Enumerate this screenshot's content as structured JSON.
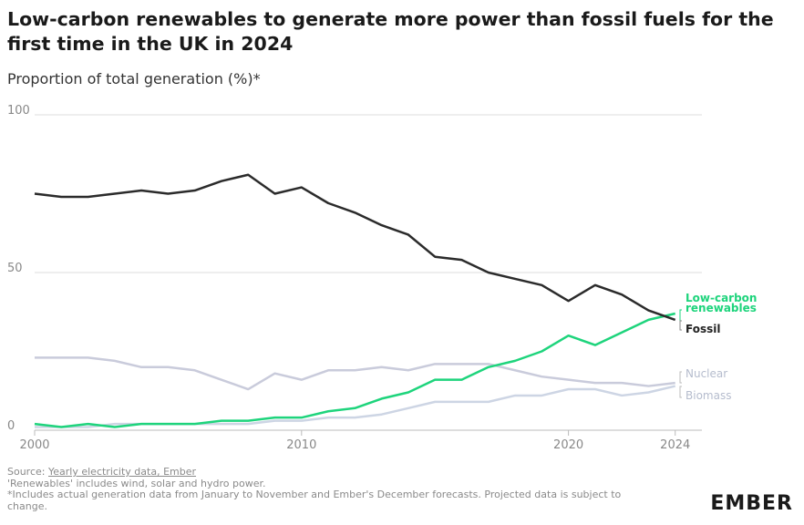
{
  "chart_data": {
    "type": "line",
    "title": "Low-carbon renewables to generate more power than fossil fuels for the first time in the UK in 2024",
    "subtitle": "Proportion of total generation (%)*",
    "x": [
      2000,
      2001,
      2002,
      2003,
      2004,
      2005,
      2006,
      2007,
      2008,
      2009,
      2010,
      2011,
      2012,
      2013,
      2014,
      2015,
      2016,
      2017,
      2018,
      2019,
      2020,
      2021,
      2022,
      2023,
      2024
    ],
    "series": [
      {
        "name": "Fossil",
        "color": "#2b2b2b",
        "values": [
          75,
          74,
          74,
          75,
          76,
          75,
          76,
          79,
          81,
          75,
          77,
          72,
          69,
          65,
          62,
          55,
          54,
          50,
          48,
          46,
          41,
          46,
          43,
          38,
          35
        ]
      },
      {
        "name": "Low-carbon renewables",
        "color": "#1ed47c",
        "values": [
          2,
          1,
          2,
          1,
          2,
          2,
          2,
          3,
          3,
          4,
          4,
          6,
          7,
          10,
          12,
          16,
          16,
          20,
          22,
          25,
          30,
          27,
          31,
          35,
          37
        ]
      },
      {
        "name": "Nuclear",
        "color": "#c9cbdb",
        "values": [
          23,
          23,
          23,
          22,
          20,
          20,
          19,
          16,
          13,
          18,
          16,
          19,
          19,
          20,
          19,
          21,
          21,
          21,
          19,
          17,
          16,
          15,
          15,
          14,
          15
        ]
      },
      {
        "name": "Biomass",
        "color": "#cdd5e4",
        "values": [
          1,
          1,
          1,
          2,
          2,
          2,
          2,
          2,
          2,
          3,
          3,
          4,
          4,
          5,
          7,
          9,
          9,
          9,
          11,
          11,
          13,
          13,
          11,
          12,
          14
        ]
      }
    ],
    "xlim": [
      2000,
      2025
    ],
    "xticks": [
      2000,
      2010,
      2020,
      2024
    ],
    "ylim": [
      0,
      100
    ],
    "yticks": [
      0,
      50,
      100
    ],
    "grid": true,
    "source_label": "Source:",
    "source_link": "Yearly electricity data, Ember",
    "notes": [
      "'Renewables' includes wind, solar and hydro power.",
      "*Includes actual generation data from January to November and Ember's December forecasts. Projected data is subject to change."
    ],
    "logo": "EMBER"
  }
}
